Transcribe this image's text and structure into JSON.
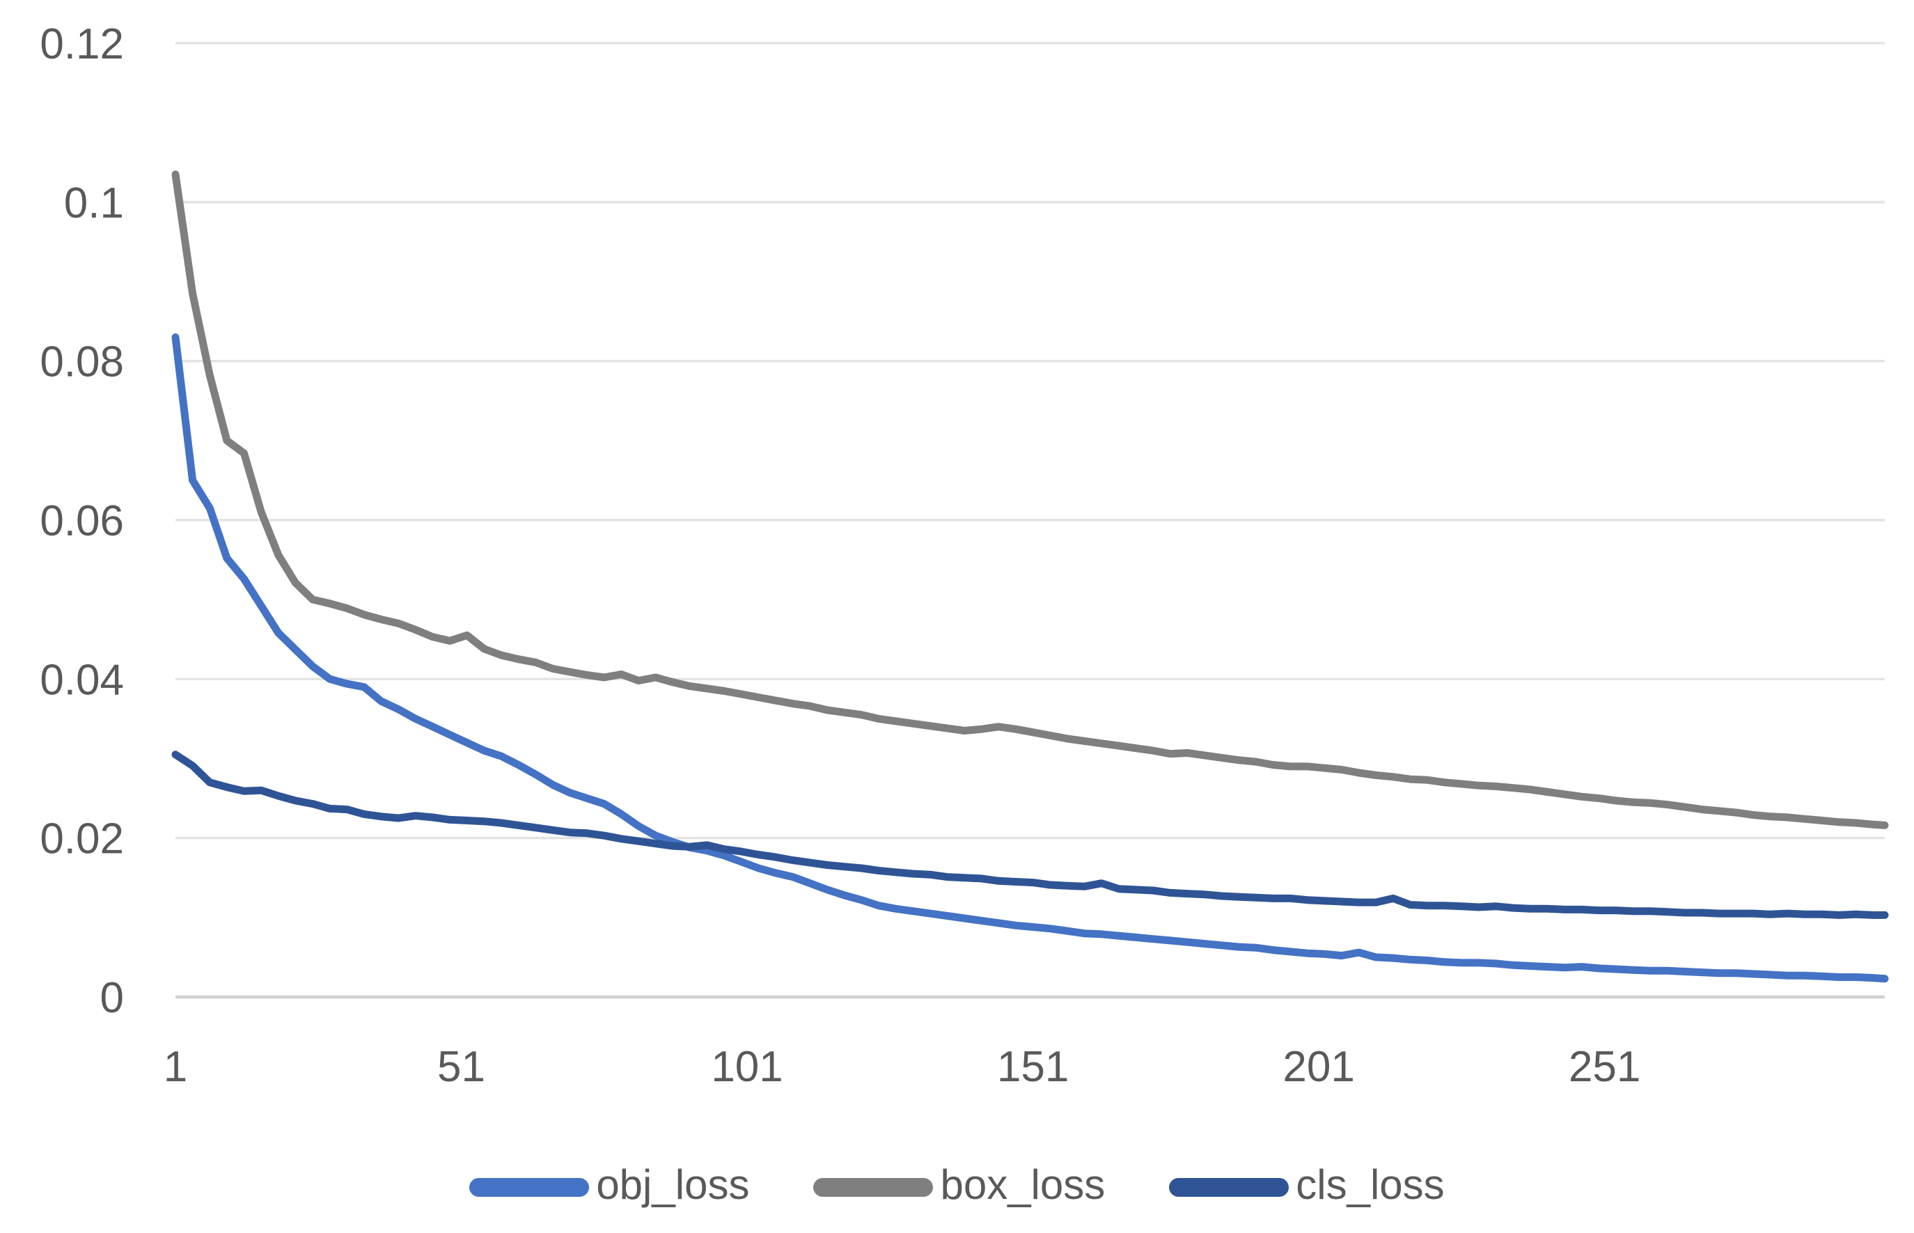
{
  "colors": {
    "background": "#FFFFFF",
    "gridline": "#E3E3E3",
    "axis_line": "#D2D2D2",
    "axis_text": "#595959",
    "obj_loss": "#4472C4",
    "box_loss": "#7F7F7F",
    "cls_loss": "#2F5496"
  },
  "chart_data": {
    "type": "line",
    "title": "",
    "xlabel": "",
    "ylabel": "",
    "xlim": [
      1,
      300
    ],
    "ylim": [
      0,
      0.12
    ],
    "grid": "horizontal",
    "legend_position": "bottom",
    "x_tick_values": [
      1,
      51,
      101,
      151,
      201,
      251
    ],
    "x_tick_labels": [
      "1",
      "51",
      "101",
      "151",
      "201",
      "251"
    ],
    "y_tick_values": [
      0,
      0.02,
      0.04,
      0.06,
      0.08,
      0.1,
      0.12
    ],
    "y_tick_labels": [
      "0",
      "0.02",
      "0.04",
      "0.06",
      "0.08",
      "0.1",
      "0.12"
    ],
    "x": [
      1,
      4,
      7,
      10,
      13,
      16,
      19,
      22,
      25,
      28,
      31,
      34,
      37,
      40,
      43,
      46,
      49,
      52,
      55,
      58,
      61,
      64,
      67,
      70,
      73,
      76,
      79,
      82,
      85,
      88,
      91,
      94,
      97,
      100,
      103,
      106,
      109,
      112,
      115,
      118,
      121,
      124,
      127,
      130,
      133,
      136,
      139,
      142,
      145,
      148,
      151,
      154,
      157,
      160,
      163,
      166,
      169,
      172,
      175,
      178,
      181,
      184,
      187,
      190,
      193,
      196,
      199,
      202,
      205,
      208,
      211,
      214,
      217,
      220,
      223,
      226,
      229,
      232,
      235,
      238,
      241,
      244,
      247,
      250,
      253,
      256,
      259,
      262,
      265,
      268,
      271,
      274,
      277,
      280,
      283,
      286,
      289,
      292,
      295,
      298,
      300
    ],
    "series": [
      {
        "name": "obj_loss",
        "color": "#4472C4",
        "values": [
          0.083,
          0.065,
          0.0615,
          0.0552,
          0.0526,
          0.0492,
          0.0458,
          0.0437,
          0.0416,
          0.04,
          0.0394,
          0.039,
          0.0372,
          0.0362,
          0.035,
          0.034,
          0.033,
          0.032,
          0.031,
          0.0303,
          0.0292,
          0.028,
          0.0267,
          0.0257,
          0.025,
          0.0243,
          0.023,
          0.0215,
          0.0203,
          0.0195,
          0.0188,
          0.0184,
          0.0178,
          0.017,
          0.0162,
          0.0156,
          0.0151,
          0.0143,
          0.0135,
          0.0128,
          0.0122,
          0.0115,
          0.0111,
          0.0108,
          0.0105,
          0.0102,
          0.0099,
          0.0096,
          0.0093,
          0.009,
          0.0088,
          0.0086,
          0.0083,
          0.008,
          0.0079,
          0.0077,
          0.0075,
          0.0073,
          0.0071,
          0.0069,
          0.0067,
          0.0065,
          0.0063,
          0.0062,
          0.0059,
          0.0057,
          0.0055,
          0.0054,
          0.0052,
          0.0056,
          0.005,
          0.0049,
          0.0047,
          0.0046,
          0.0044,
          0.0043,
          0.0043,
          0.0042,
          0.004,
          0.0039,
          0.0038,
          0.0037,
          0.0038,
          0.0036,
          0.0035,
          0.0034,
          0.0033,
          0.0033,
          0.0032,
          0.0031,
          0.003,
          0.003,
          0.0029,
          0.0028,
          0.0027,
          0.0027,
          0.0026,
          0.0025,
          0.0025,
          0.0024,
          0.0023
        ]
      },
      {
        "name": "box_loss",
        "color": "#7F7F7F",
        "values": [
          0.1035,
          0.0885,
          0.0782,
          0.07,
          0.0684,
          0.061,
          0.0556,
          0.0521,
          0.05,
          0.0495,
          0.0489,
          0.0481,
          0.0475,
          0.047,
          0.0462,
          0.0453,
          0.0448,
          0.0455,
          0.0438,
          0.043,
          0.0425,
          0.0421,
          0.0413,
          0.0409,
          0.0405,
          0.0402,
          0.0406,
          0.0398,
          0.0402,
          0.0396,
          0.0391,
          0.0388,
          0.0385,
          0.0381,
          0.0377,
          0.0373,
          0.0369,
          0.0366,
          0.0361,
          0.0358,
          0.0355,
          0.035,
          0.0347,
          0.0344,
          0.0341,
          0.0338,
          0.0335,
          0.0337,
          0.034,
          0.0337,
          0.0333,
          0.0329,
          0.0325,
          0.0322,
          0.0319,
          0.0316,
          0.0313,
          0.031,
          0.0306,
          0.0307,
          0.0304,
          0.0301,
          0.0298,
          0.0296,
          0.0292,
          0.029,
          0.029,
          0.0288,
          0.0286,
          0.0282,
          0.0279,
          0.0277,
          0.0274,
          0.0273,
          0.027,
          0.0268,
          0.0266,
          0.0265,
          0.0263,
          0.0261,
          0.0258,
          0.0255,
          0.0252,
          0.025,
          0.0247,
          0.0245,
          0.0244,
          0.0242,
          0.0239,
          0.0236,
          0.0234,
          0.0232,
          0.0229,
          0.0227,
          0.0226,
          0.0224,
          0.0222,
          0.022,
          0.0219,
          0.0217,
          0.0216
        ]
      },
      {
        "name": "cls_loss",
        "color": "#2F5496",
        "values": [
          0.0305,
          0.0291,
          0.027,
          0.0264,
          0.0259,
          0.026,
          0.0253,
          0.0247,
          0.0243,
          0.0237,
          0.0236,
          0.023,
          0.0227,
          0.0225,
          0.0228,
          0.0226,
          0.0223,
          0.0222,
          0.0221,
          0.0219,
          0.0216,
          0.0213,
          0.021,
          0.0207,
          0.0206,
          0.0203,
          0.0199,
          0.0196,
          0.0193,
          0.019,
          0.0189,
          0.0191,
          0.0186,
          0.0183,
          0.0179,
          0.0176,
          0.0172,
          0.0169,
          0.0166,
          0.0164,
          0.0162,
          0.0159,
          0.0157,
          0.0155,
          0.0154,
          0.0151,
          0.015,
          0.0149,
          0.0146,
          0.0145,
          0.0144,
          0.0141,
          0.014,
          0.0139,
          0.0143,
          0.0136,
          0.0135,
          0.0134,
          0.0131,
          0.013,
          0.0129,
          0.0127,
          0.0126,
          0.0125,
          0.0124,
          0.0124,
          0.0122,
          0.0121,
          0.012,
          0.0119,
          0.0119,
          0.0124,
          0.0116,
          0.0115,
          0.0115,
          0.0114,
          0.0113,
          0.0114,
          0.0112,
          0.0111,
          0.0111,
          0.011,
          0.011,
          0.0109,
          0.0109,
          0.0108,
          0.0108,
          0.0107,
          0.0106,
          0.0106,
          0.0105,
          0.0105,
          0.0105,
          0.0104,
          0.0105,
          0.0104,
          0.0104,
          0.0103,
          0.0104,
          0.0103,
          0.0103
        ]
      }
    ]
  }
}
